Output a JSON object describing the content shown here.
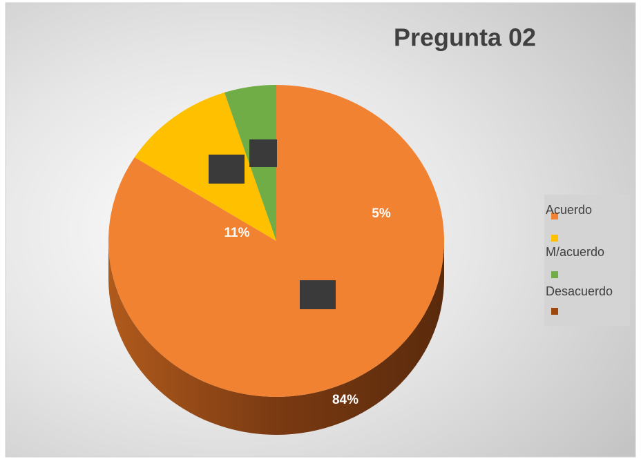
{
  "chart_data": {
    "type": "pie",
    "title": "Pregunta 02",
    "categories": [
      "Acuerdo",
      "M/acuerdo",
      "Desacuerdo"
    ],
    "values": [
      84,
      11,
      5
    ],
    "value_labels": [
      "84%",
      "11%",
      "5%"
    ],
    "colors": [
      "#f08232",
      "#ffc000",
      "#70ad47"
    ],
    "legend": "right"
  }
}
